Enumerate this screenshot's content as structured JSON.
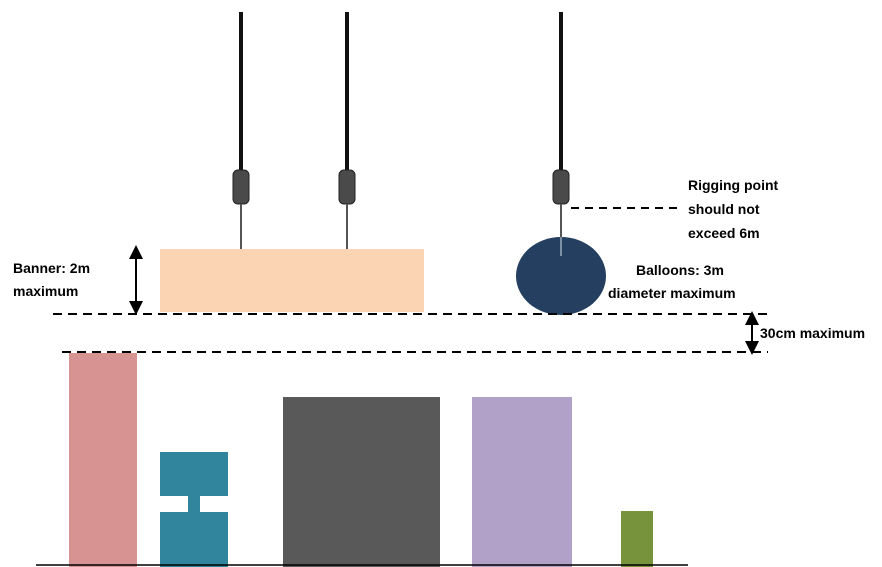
{
  "labels": {
    "banner_line1": "Banner: 2m",
    "banner_line2": "maximum",
    "rigging_line1": "Rigging point",
    "rigging_line2": "should not",
    "rigging_line3": "exceed 6m",
    "balloons_line1": "Balloons: 3m",
    "balloons_line2": "diameter maximum",
    "gap": "30cm maximum"
  },
  "colors": {
    "cable": "#111111",
    "clamp": "#4a4a4a",
    "banner": "#fbd4b4",
    "balloon": "#243f60",
    "box_pink": "#d79391",
    "box_teal": "#31859c",
    "box_gray": "#595959",
    "box_purple": "#b1a0c7",
    "box_green": "#77933c"
  }
}
